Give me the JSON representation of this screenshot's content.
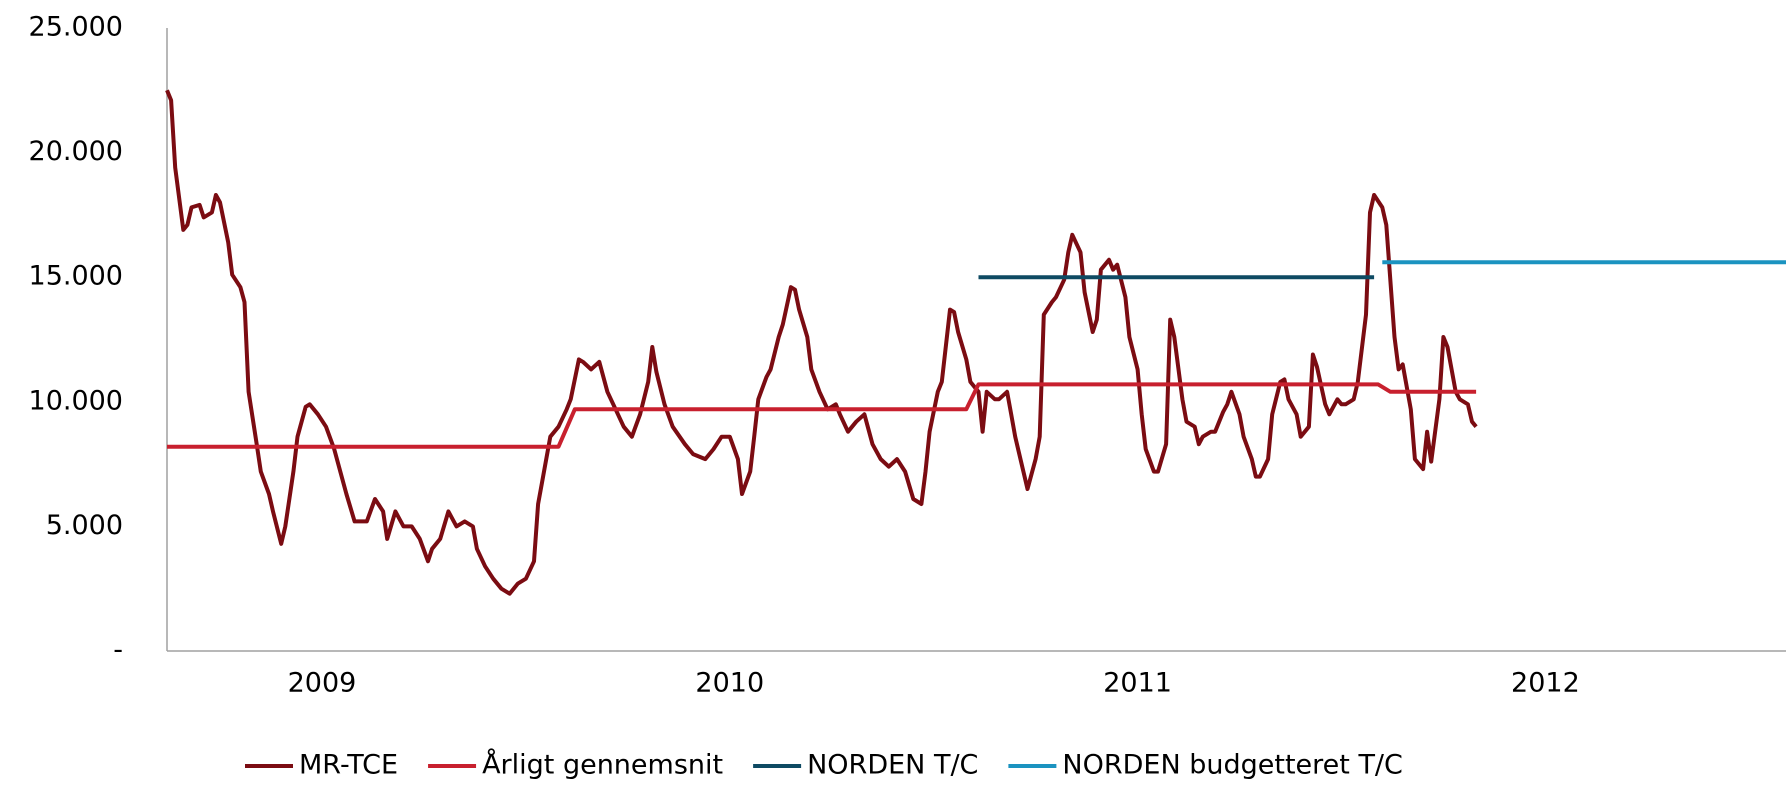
{
  "chart_data": {
    "type": "line",
    "xlim": [
      2009.12,
      2013.09
    ],
    "xticks": [
      {
        "value": 2009.5,
        "label": "2009"
      },
      {
        "value": 2010.5,
        "label": "2010"
      },
      {
        "value": 2011.5,
        "label": "2011"
      },
      {
        "value": 2012.5,
        "label": "2012"
      }
    ],
    "ylim": [
      0,
      25000
    ],
    "yticks": [
      {
        "value": 0,
        "label": "-"
      },
      {
        "value": 5000,
        "label": "5.000"
      },
      {
        "value": 10000,
        "label": "10.000"
      },
      {
        "value": 15000,
        "label": "15.000"
      },
      {
        "value": 20000,
        "label": "20.000"
      },
      {
        "value": 25000,
        "label": "25.000"
      }
    ],
    "grid": false,
    "legend": "bottom",
    "series": [
      {
        "name": "MR-TCE",
        "color": "#7b0c12",
        "x": [
          2009.12,
          2009.13,
          2009.14,
          2009.16,
          2009.17,
          2009.18,
          2009.2,
          2009.21,
          2009.23,
          2009.24,
          2009.25,
          2009.27,
          2009.28,
          2009.3,
          2009.31,
          2009.32,
          2009.34,
          2009.35,
          2009.37,
          2009.38,
          2009.4,
          2009.41,
          2009.43,
          2009.44,
          2009.46,
          2009.47,
          2009.49,
          2009.51,
          2009.53,
          2009.56,
          2009.58,
          2009.6,
          2009.61,
          2009.63,
          2009.65,
          2009.66,
          2009.68,
          2009.7,
          2009.72,
          2009.74,
          2009.76,
          2009.77,
          2009.79,
          2009.81,
          2009.83,
          2009.85,
          2009.87,
          2009.88,
          2009.9,
          2009.92,
          2009.94,
          2009.96,
          2009.98,
          2010.0,
          2010.02,
          2010.03,
          2010.04,
          2010.06,
          2010.08,
          2010.1,
          2010.11,
          2010.13,
          2010.14,
          2010.16,
          2010.18,
          2010.2,
          2010.22,
          2010.24,
          2010.26,
          2010.28,
          2010.3,
          2010.31,
          2010.32,
          2010.34,
          2010.36,
          2010.39,
          2010.41,
          2010.44,
          2010.46,
          2010.48,
          2010.5,
          2010.52,
          2010.53,
          2010.55,
          2010.56,
          2010.57,
          2010.59,
          2010.6,
          2010.62,
          2010.63,
          2010.65,
          2010.66,
          2010.67,
          2010.69,
          2010.7,
          2010.72,
          2010.74,
          2010.76,
          2010.77,
          2010.79,
          2010.81,
          2010.83,
          2010.85,
          2010.87,
          2010.89,
          2010.91,
          2010.93,
          2010.95,
          2010.97,
          2010.98,
          2010.99,
          2011.01,
          2011.02,
          2011.04,
          2011.05,
          2011.06,
          2011.08,
          2011.09,
          2011.11,
          2011.12,
          2011.13,
          2011.15,
          2011.16,
          2011.18,
          2011.19,
          2011.2,
          2011.22,
          2011.23,
          2011.25,
          2011.26,
          2011.27,
          2011.29,
          2011.3,
          2011.32,
          2011.33,
          2011.34,
          2011.36,
          2011.37,
          2011.39,
          2011.4,
          2011.41,
          2011.43,
          2011.44,
          2011.45,
          2011.47,
          2011.48,
          2011.5,
          2011.51,
          2011.52,
          2011.54,
          2011.55,
          2011.57,
          2011.58,
          2011.59,
          2011.61,
          2011.62,
          2011.64,
          2011.65,
          2011.66,
          2011.68,
          2011.69,
          2011.71,
          2011.72,
          2011.73,
          2011.75,
          2011.76,
          2011.78,
          2011.79,
          2011.8,
          2011.82,
          2011.83,
          2011.85,
          2011.86,
          2011.87,
          2011.89,
          2011.9,
          2011.92,
          2011.93,
          2011.94,
          2011.96,
          2011.97,
          2011.99,
          2012.0,
          2012.01,
          2012.03,
          2012.04,
          2012.06,
          2012.07,
          2012.08,
          2012.1,
          2012.11,
          2012.13,
          2012.14,
          2012.15,
          2012.17,
          2012.18,
          2012.2,
          2012.21,
          2012.22,
          2012.24,
          2012.25,
          2012.26,
          2012.28,
          2012.29,
          2012.31,
          2012.32,
          2012.33
        ],
        "values": [
          22500,
          22100,
          19400,
          16900,
          17100,
          17800,
          17900,
          17400,
          17600,
          18300,
          18000,
          16400,
          15100,
          14600,
          14000,
          10400,
          8300,
          7200,
          6300,
          5600,
          4300,
          5000,
          7200,
          8600,
          9800,
          9900,
          9500,
          9000,
          8100,
          6300,
          5200,
          5200,
          5200,
          6100,
          5600,
          4500,
          5600,
          5000,
          5000,
          4500,
          3600,
          4100,
          4500,
          5600,
          5000,
          5200,
          5000,
          4100,
          3400,
          2900,
          2500,
          2300,
          2700,
          2900,
          3600,
          5900,
          6800,
          8600,
          9000,
          9700,
          10100,
          11700,
          11600,
          11300,
          11600,
          10400,
          9700,
          9000,
          8600,
          9500,
          10800,
          12200,
          11200,
          9900,
          9000,
          8300,
          7900,
          7700,
          8100,
          8600,
          8600,
          7700,
          6300,
          7200,
          8600,
          10100,
          11000,
          11300,
          12600,
          13100,
          14600,
          14500,
          13700,
          12600,
          11300,
          10400,
          9700,
          9900,
          9500,
          8800,
          9200,
          9500,
          8300,
          7700,
          7400,
          7700,
          7200,
          6100,
          5900,
          7200,
          8800,
          10400,
          10800,
          13700,
          13600,
          12800,
          11700,
          10800,
          10400,
          8800,
          10400,
          10100,
          10100,
          10400,
          9500,
          8600,
          7200,
          6500,
          7700,
          8600,
          13500,
          14000,
          14200,
          14900,
          16000,
          16700,
          16000,
          14400,
          12800,
          13300,
          15300,
          15700,
          15300,
          15500,
          14200,
          12600,
          11300,
          9500,
          8100,
          7200,
          7200,
          8300,
          13300,
          12600,
          10100,
          9200,
          9000,
          8300,
          8600,
          8800,
          8800,
          9600,
          9900,
          10400,
          9500,
          8600,
          7700,
          7000,
          7000,
          7700,
          9500,
          10800,
          10900,
          10100,
          9500,
          8600,
          9000,
          11900,
          11400,
          9900,
          9500,
          10100,
          9900,
          9900,
          10100,
          10800,
          13500,
          17600,
          18300,
          17800,
          17100,
          12600,
          11300,
          11500,
          9700,
          7700,
          7300,
          8800,
          7600,
          10100,
          12600,
          12200,
          10400,
          10100,
          9900,
          9200,
          9000
        ]
      },
      {
        "name": "Årligt gennemsnit",
        "color": "#c8202e",
        "x": [
          2009.12,
          2010.08,
          2010.12,
          2011.08,
          2011.11,
          2012.09,
          2012.12,
          2012.33
        ],
        "values": [
          8200,
          8200,
          9700,
          9700,
          10700,
          10700,
          10400,
          10400
        ]
      },
      {
        "name": "NORDEN T/C",
        "color": "#0e4a63",
        "x": [
          2011.11,
          2012.08
        ],
        "values": [
          15000,
          15000
        ]
      },
      {
        "name": "NORDEN budgetteret T/C",
        "color": "#1b93c0",
        "x": [
          2012.1,
          2013.09
        ],
        "values": [
          15600,
          15600
        ]
      }
    ]
  }
}
